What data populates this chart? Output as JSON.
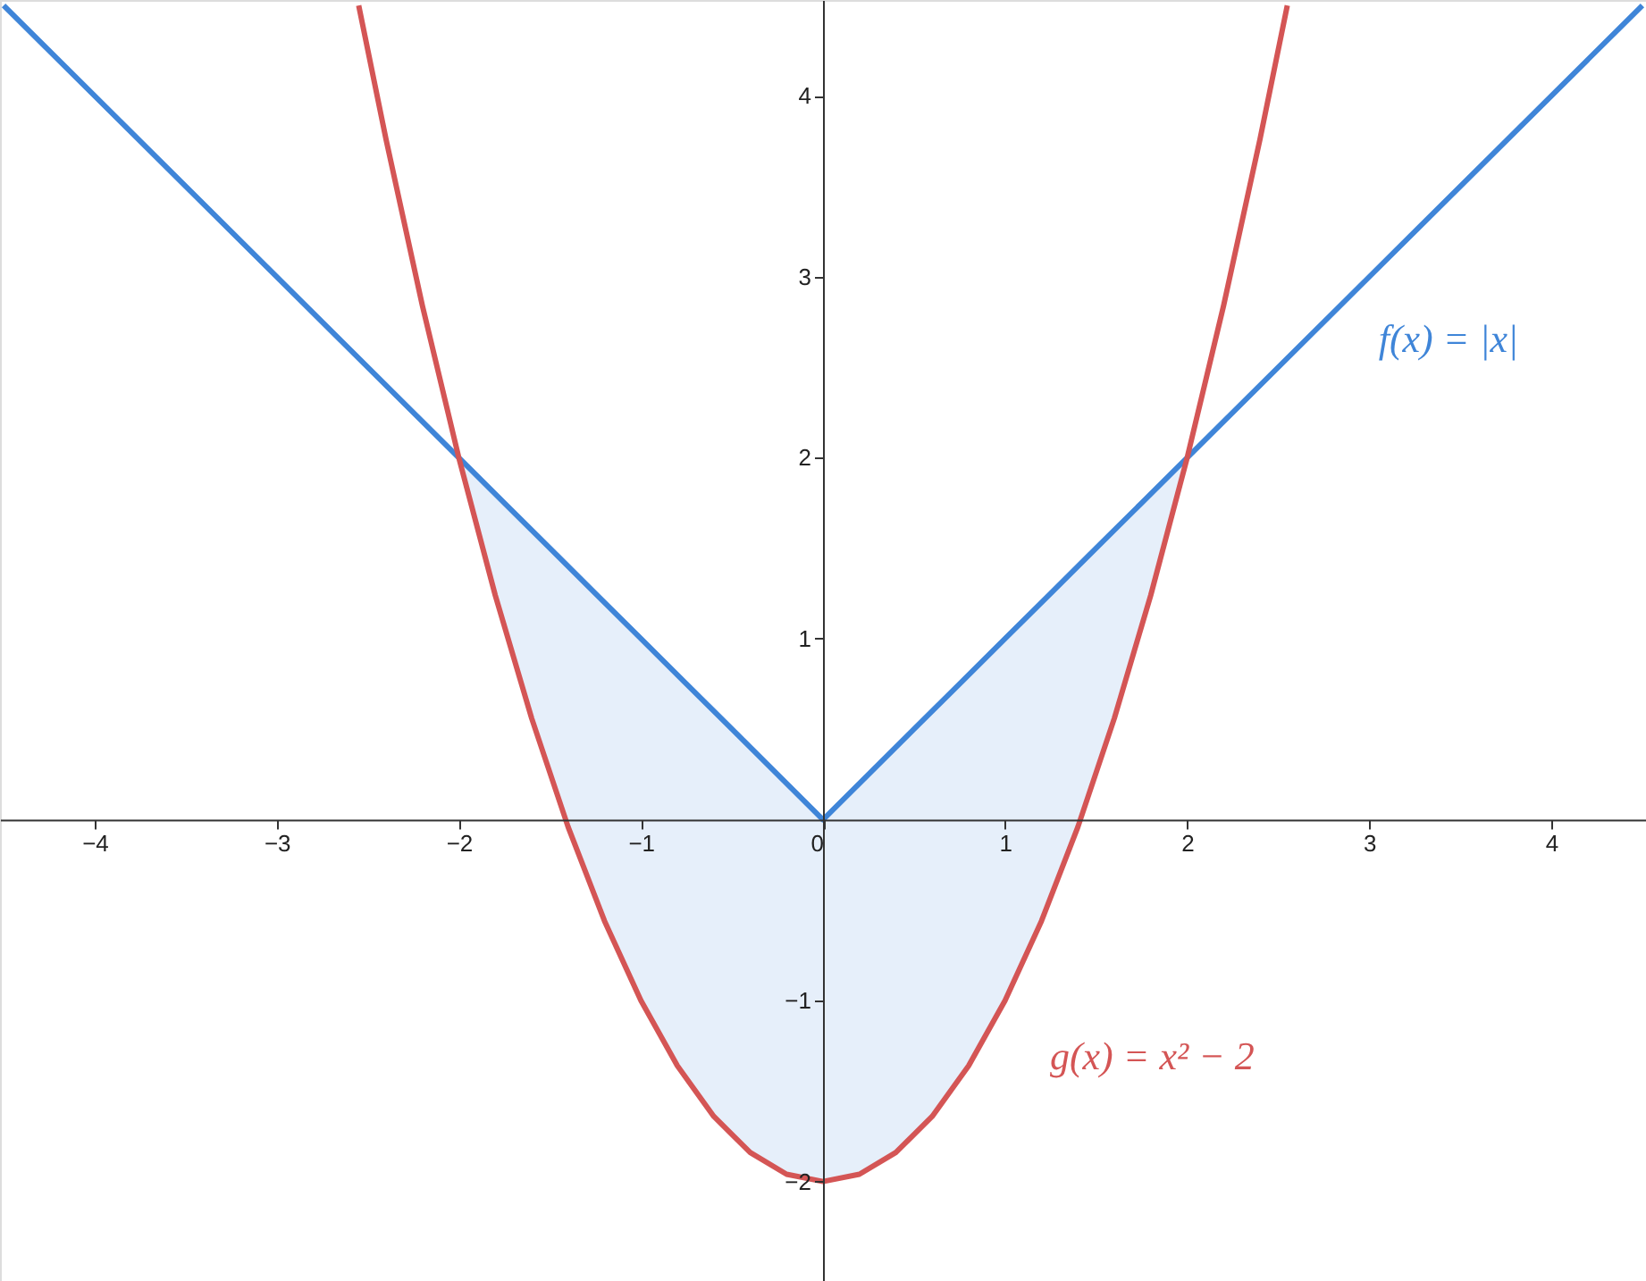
{
  "chart_data": {
    "type": "line",
    "xlim": [
      -4.52,
      4.52
    ],
    "ylim": [
      -2.55,
      4.53
    ],
    "xticks": [
      -4,
      -3,
      -2,
      -1,
      0,
      1,
      2,
      3,
      4
    ],
    "yticks": [
      -2,
      -1,
      1,
      2,
      3,
      4
    ],
    "grid": false,
    "marker": "none",
    "line_style": "solid",
    "series": [
      {
        "color": "#3f85d8",
        "x": [
          -4.5,
          -2,
          -1.75,
          -1.5,
          -1.25,
          -1,
          -0.75,
          -0.5,
          -0.25,
          0,
          0.25,
          0.5,
          0.75,
          1,
          1.25,
          1.5,
          1.75,
          2,
          4.5
        ],
        "values": [
          4.5,
          2,
          1.75,
          1.5,
          1.25,
          1,
          0.75,
          0.5,
          0.25,
          0,
          0.25,
          0.5,
          0.75,
          1,
          1.25,
          1.5,
          1.75,
          2,
          4.5
        ],
        "lower": [
          null,
          2,
          1.06,
          0.25,
          -0.44,
          -1,
          -1.44,
          -1.75,
          -1.94,
          -2,
          -1.94,
          -1.75,
          -1.44,
          -1,
          -0.44,
          0.25,
          1.06,
          2,
          null
        ],
        "upper": [
          null,
          2,
          1.75,
          1.5,
          1.25,
          1,
          0.75,
          0.5,
          0.25,
          0,
          0.25,
          0.5,
          0.75,
          1,
          1.25,
          1.5,
          1.75,
          2,
          null
        ]
      },
      {
        "color": "#d45555",
        "x": [
          -2.55,
          -2.4,
          -2.2,
          -2,
          -1.8,
          -1.6,
          -1.4,
          -1.2,
          -1,
          -0.8,
          -0.6,
          -0.4,
          -0.2,
          0,
          0.2,
          0.4,
          0.6,
          0.8,
          1,
          1.2,
          1.4,
          1.6,
          1.8,
          2,
          2.2,
          2.4,
          2.55
        ],
        "values": [
          4.5,
          3.76,
          2.84,
          2,
          1.24,
          0.56,
          -0.04,
          -0.56,
          -1,
          -1.36,
          -1.64,
          -1.84,
          -1.96,
          -2,
          -1.96,
          -1.84,
          -1.64,
          -1.36,
          -1,
          -0.56,
          -0.04,
          0.56,
          1.24,
          2,
          2.84,
          3.76,
          4.5
        ]
      }
    ],
    "annotations": [
      "f(x) = |x|",
      "g(x) = x² − 2"
    ]
  }
}
